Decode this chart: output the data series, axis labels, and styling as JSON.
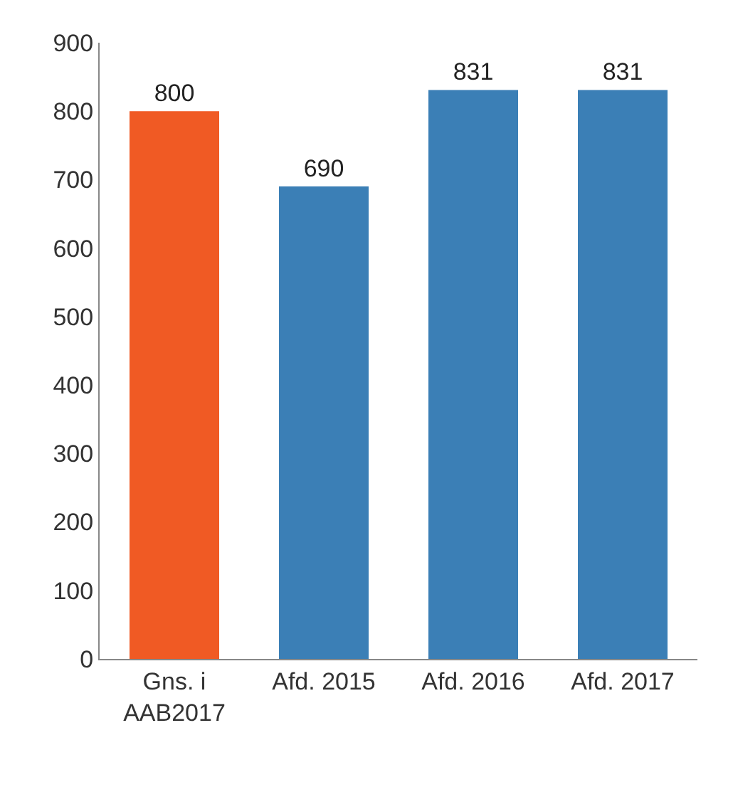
{
  "chart_data": {
    "type": "bar",
    "categories": [
      "Gns. i AAB2017",
      "Afd. 2015",
      "Afd. 2016",
      "Afd. 2017"
    ],
    "values": [
      800,
      690,
      831,
      831
    ],
    "colors": [
      "#f05a24",
      "#3b7fb6",
      "#3b7fb6",
      "#3b7fb6"
    ],
    "ylim": [
      0,
      900
    ],
    "yticks": [
      0,
      100,
      200,
      300,
      400,
      500,
      600,
      700,
      800,
      900
    ],
    "data_labels": true
  }
}
